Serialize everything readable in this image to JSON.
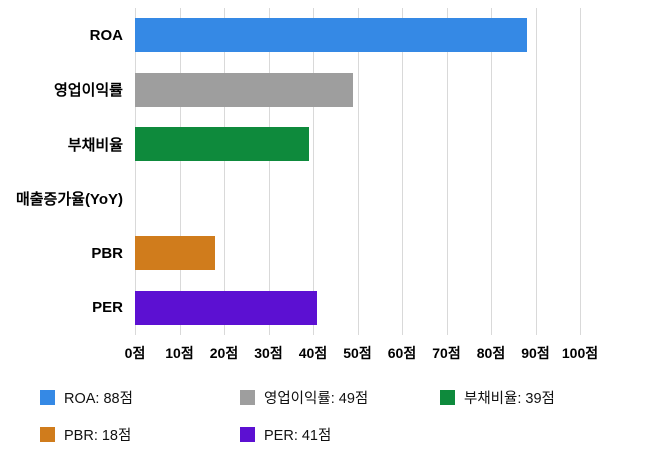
{
  "chart_data": {
    "type": "bar",
    "orientation": "horizontal",
    "title": "",
    "xlabel": "",
    "ylabel": "",
    "xlim": [
      0,
      100
    ],
    "grid": true,
    "unit": "점",
    "categories": [
      "ROA",
      "영업이익률",
      "부채비율",
      "매출증가율(YoY)",
      "PBR",
      "PER"
    ],
    "values": [
      88,
      49,
      39,
      0,
      18,
      41
    ],
    "bar_colors": [
      "#3589e5",
      "#9e9e9e",
      "#0e8a3c",
      null,
      "#d07c1c",
      "#5c10d2"
    ],
    "x_ticks": [
      "0점",
      "10점",
      "20점",
      "30점",
      "40점",
      "50점",
      "60점",
      "70점",
      "80점",
      "90점",
      "100점"
    ],
    "x_tick_values": [
      0,
      10,
      20,
      30,
      40,
      50,
      60,
      70,
      80,
      90,
      100
    ],
    "legend_position": "bottom",
    "legend": [
      {
        "label": "ROA: 88점",
        "color": "#3589e5"
      },
      {
        "label": "영업이익률: 49점",
        "color": "#9e9e9e"
      },
      {
        "label": "부채비율: 39점",
        "color": "#0e8a3c"
      },
      {
        "label": "PBR: 18점",
        "color": "#d07c1c"
      },
      {
        "label": "PER: 41점",
        "color": "#5c10d2"
      }
    ],
    "gridline_color": "#d9d9d9"
  }
}
